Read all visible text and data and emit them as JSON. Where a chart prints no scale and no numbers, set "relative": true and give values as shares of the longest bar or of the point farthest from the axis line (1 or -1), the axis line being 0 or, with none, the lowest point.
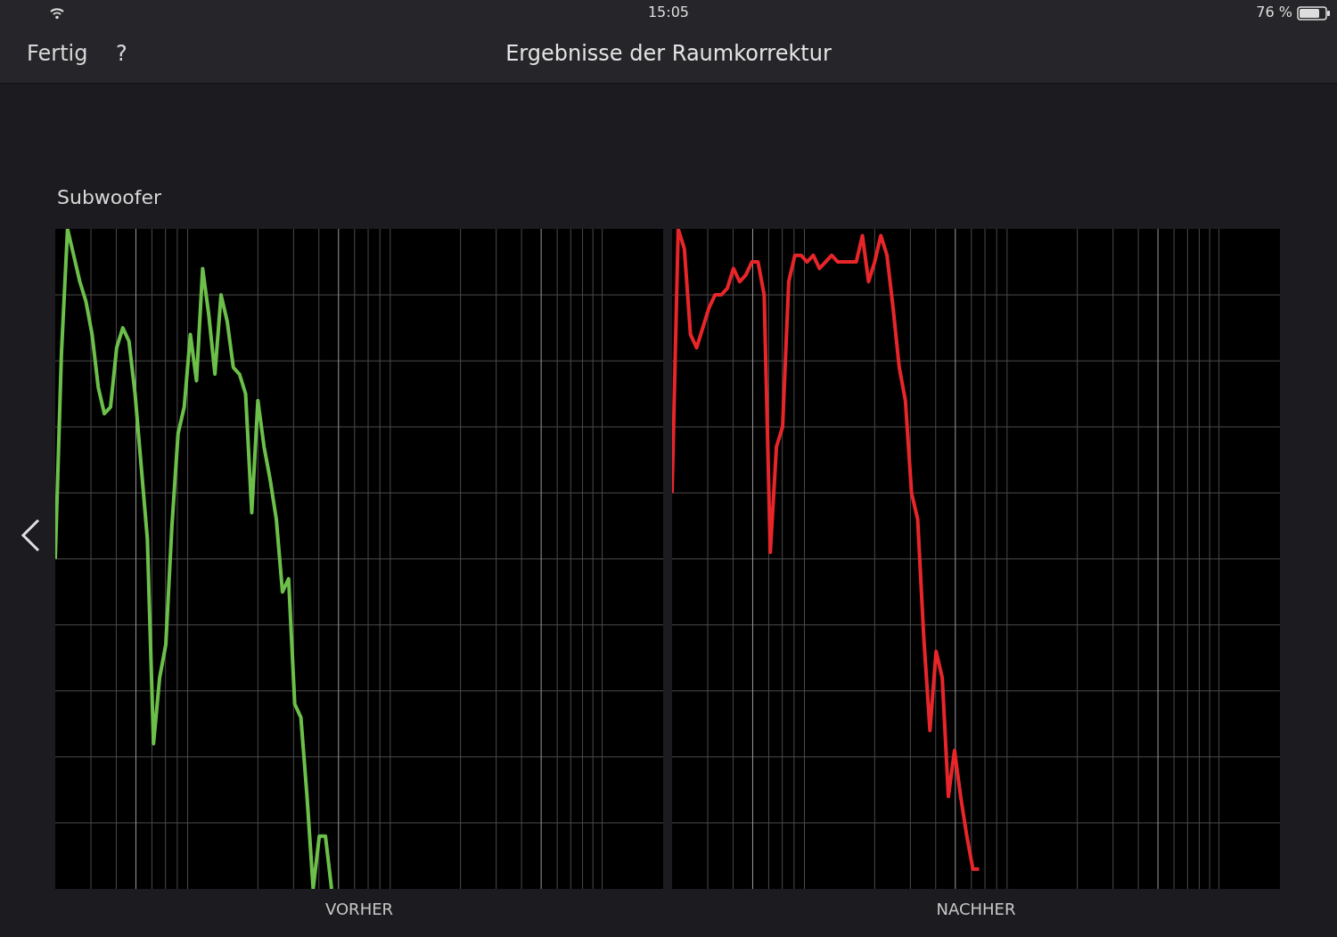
{
  "chart_data": [
    {
      "type": "line",
      "title": "Ergebnisse der Raumkorrektur",
      "subtitle": "Subwoofer",
      "xlabel": "VORHER",
      "relative": true,
      "grid": true,
      "marker": "none",
      "annotations": [
        "Fertig",
        "?",
        "15:05",
        "76 %"
      ],
      "categories": [
        null,
        null,
        null,
        null,
        null,
        null,
        null,
        null,
        null,
        null,
        null,
        null,
        null,
        null,
        null,
        null,
        null,
        null,
        null,
        null,
        null,
        null,
        null,
        null,
        null,
        null,
        null,
        null,
        null,
        null,
        null,
        null,
        null,
        null,
        null,
        null,
        null,
        null,
        null,
        null,
        null,
        null,
        null,
        null,
        null,
        null,
        null,
        null,
        null,
        null,
        null,
        null,
        null,
        null,
        null,
        null,
        null,
        null,
        null,
        null,
        null,
        null,
        null,
        null,
        null,
        null,
        null,
        null,
        null,
        null,
        null,
        null,
        null,
        null,
        null,
        null,
        null,
        null,
        null,
        null,
        null,
        null,
        null,
        null,
        null,
        null,
        null,
        null,
        null,
        null,
        null,
        null,
        null,
        null,
        null,
        null,
        null,
        null,
        null,
        null
      ],
      "series": [
        {
          "color": "#6cc04a",
          "values": [
            0.5,
            0.81,
            1.0,
            0.96,
            0.92,
            0.89,
            0.84,
            0.76,
            0.72,
            0.73,
            0.82,
            0.85,
            0.83,
            0.75,
            0.64,
            0.53,
            0.22,
            0.32,
            0.37,
            0.55,
            0.69,
            0.73,
            0.84,
            0.77,
            0.94,
            0.87,
            0.78,
            0.9,
            0.86,
            0.79,
            0.78,
            0.75,
            0.57,
            0.74,
            0.67,
            0.62,
            0.56,
            0.45,
            0.47,
            0.28,
            0.26,
            0.14,
            0.0,
            0.08,
            0.08,
            0.0,
            null,
            null,
            null,
            null,
            null,
            null,
            null,
            null,
            null,
            null,
            null,
            null,
            null,
            null,
            null,
            null,
            null,
            null,
            null,
            null,
            null,
            null,
            null,
            null,
            null,
            null,
            null,
            null,
            null,
            null,
            null,
            null,
            null,
            null,
            null,
            null,
            null,
            null,
            null,
            null,
            null,
            null,
            null,
            null,
            null,
            null,
            null,
            null,
            null,
            null,
            null,
            null,
            null,
            null
          ]
        }
      ]
    },
    {
      "type": "line",
      "xlabel": "NACHHER",
      "relative": true,
      "grid": true,
      "marker": "none",
      "categories": [
        null,
        null,
        null,
        null,
        null,
        null,
        null,
        null,
        null,
        null,
        null,
        null,
        null,
        null,
        null,
        null,
        null,
        null,
        null,
        null,
        null,
        null,
        null,
        null,
        null,
        null,
        null,
        null,
        null,
        null,
        null,
        null,
        null,
        null,
        null,
        null,
        null,
        null,
        null,
        null,
        null,
        null,
        null,
        null,
        null,
        null,
        null,
        null,
        null,
        null,
        null,
        null,
        null,
        null,
        null,
        null,
        null,
        null,
        null,
        null,
        null,
        null,
        null,
        null,
        null,
        null,
        null,
        null,
        null,
        null,
        null,
        null,
        null,
        null,
        null,
        null,
        null,
        null,
        null,
        null,
        null,
        null,
        null,
        null,
        null,
        null,
        null,
        null,
        null,
        null,
        null,
        null,
        null,
        null,
        null,
        null,
        null,
        null,
        null,
        null
      ],
      "series": [
        {
          "color": "#e8262a",
          "values": [
            0.6,
            1.0,
            0.97,
            0.84,
            0.82,
            0.85,
            0.88,
            0.9,
            0.9,
            0.91,
            0.94,
            0.92,
            0.93,
            0.95,
            0.95,
            0.9,
            0.51,
            0.67,
            0.7,
            0.92,
            0.96,
            0.96,
            0.95,
            0.96,
            0.94,
            0.95,
            0.96,
            0.95,
            0.95,
            0.95,
            0.95,
            0.99,
            0.92,
            0.95,
            0.99,
            0.96,
            0.88,
            0.79,
            0.74,
            0.6,
            0.56,
            0.38,
            0.24,
            0.36,
            0.32,
            0.14,
            0.21,
            0.14,
            0.08,
            0.03,
            0.03,
            null,
            null,
            null,
            null,
            null,
            null,
            null,
            null,
            null,
            null,
            null,
            null,
            null,
            null,
            null,
            null,
            null,
            null,
            null,
            null,
            null,
            null,
            null,
            null,
            null,
            null,
            null,
            null,
            null,
            null,
            null,
            null,
            null,
            null,
            null,
            null,
            null,
            null,
            null,
            null,
            null,
            null,
            null,
            null,
            null,
            null,
            null,
            null,
            null
          ]
        }
      ]
    }
  ]
}
